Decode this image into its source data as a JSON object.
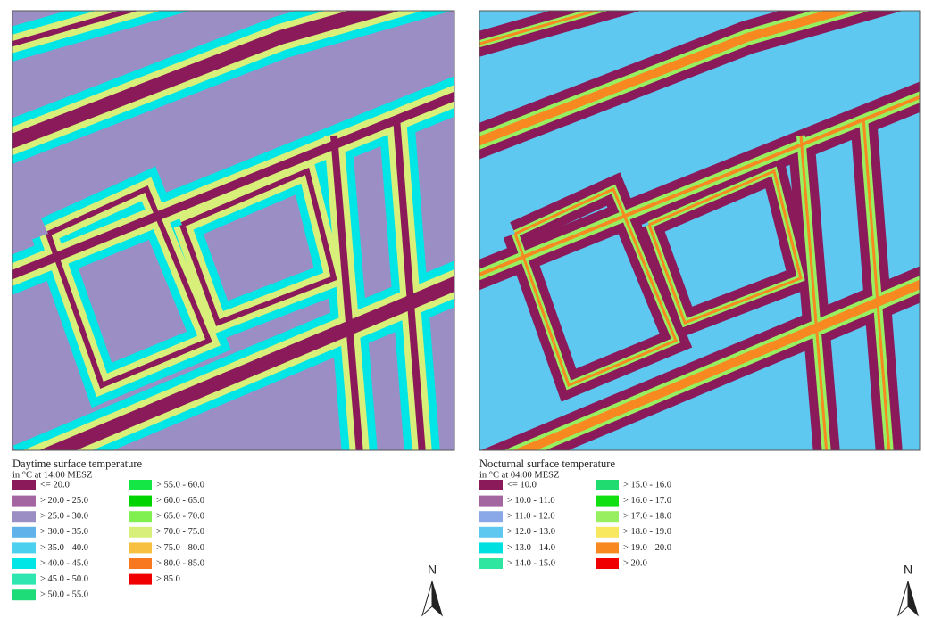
{
  "maps": [
    {
      "title": "Daytime surface temperature",
      "subtitle": "in °C at  14:00 MESZ",
      "north": "N",
      "legend": [
        {
          "label": "<= 20.0",
          "color": "#8b1a5a"
        },
        {
          "label": "> 20.0 - 25.0",
          "color": "#a466a0"
        },
        {
          "label": "> 25.0 - 30.0",
          "color": "#9b8ec4"
        },
        {
          "label": "> 30.0 - 35.0",
          "color": "#5fb3ea"
        },
        {
          "label": "> 35.0 - 40.0",
          "color": "#4cd0f0"
        },
        {
          "label": "> 40.0 - 45.0",
          "color": "#00e5e5"
        },
        {
          "label": "> 45.0 - 50.0",
          "color": "#2ee6b0"
        },
        {
          "label": "> 50.0 - 55.0",
          "color": "#1edc78"
        },
        {
          "label": "> 55.0 - 60.0",
          "color": "#14e646"
        },
        {
          "label": "> 60.0 - 65.0",
          "color": "#00d400"
        },
        {
          "label": "> 65.0 - 70.0",
          "color": "#80f050"
        },
        {
          "label": "> 70.0 - 75.0",
          "color": "#d8f07a"
        },
        {
          "label": "> 75.0 - 80.0",
          "color": "#f8c040"
        },
        {
          "label": "> 80.0 - 85.0",
          "color": "#f87820"
        },
        {
          "label": "> 85.0",
          "color": "#f00000"
        }
      ]
    },
    {
      "title": "Nocturnal surface temperature",
      "subtitle": "in °C at 04:00 MESZ",
      "north": "N",
      "legend": [
        {
          "label": "<= 10.0",
          "color": "#8b1a5a"
        },
        {
          "label": "> 10.0 - 11.0",
          "color": "#a466a0"
        },
        {
          "label": "> 11.0 - 12.0",
          "color": "#8aa8e8"
        },
        {
          "label": "> 12.0 - 13.0",
          "color": "#5fc8f0"
        },
        {
          "label": "> 13.0 - 14.0",
          "color": "#00e0e0"
        },
        {
          "label": "> 14.0 - 15.0",
          "color": "#2ee6a0"
        },
        {
          "label": "> 15.0 - 16.0",
          "color": "#20dc70"
        },
        {
          "label": "> 16.0 - 17.0",
          "color": "#10e010"
        },
        {
          "label": "> 17.0 - 18.0",
          "color": "#98f060"
        },
        {
          "label": "> 18.0 - 19.0",
          "color": "#f8e860"
        },
        {
          "label": "> 19.0 - 20.0",
          "color": "#f88820"
        },
        {
          "label": "> 20.0",
          "color": "#f00000"
        }
      ]
    }
  ]
}
